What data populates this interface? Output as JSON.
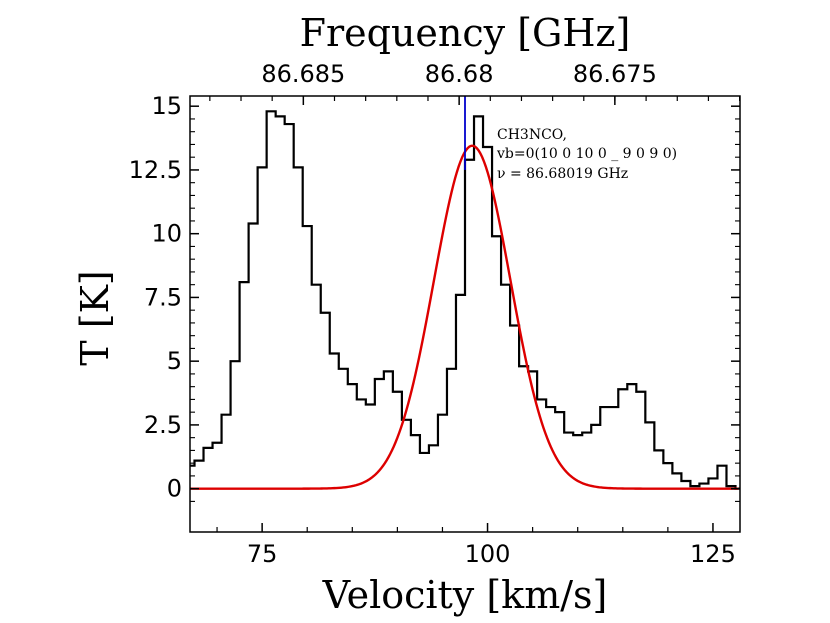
{
  "chart_data": {
    "type": "line",
    "title": "",
    "xlabel": "Velocity [km/s]",
    "ylabel": "T [K]",
    "top_xlabel": "Frequency [GHz]",
    "xlim": [
      67,
      128
    ],
    "ylim": [
      -1.7,
      15.4
    ],
    "x_ticks": [
      75,
      100,
      125
    ],
    "x_tick_labels": [
      "75",
      "100",
      "125"
    ],
    "y_ticks": [
      0,
      2.5,
      5,
      7.5,
      10,
      12.5,
      15
    ],
    "y_tick_labels": [
      "0",
      "2.5",
      "5",
      "7.5",
      "10",
      "12.5",
      "15"
    ],
    "top_ticks": [
      {
        "velocity": 79.57,
        "label": "86.685"
      },
      {
        "velocity": 96.85,
        "label": "86.68"
      },
      {
        "velocity": 114.12,
        "label": "86.675"
      }
    ],
    "grid": false,
    "legend": "none",
    "annotation": [
      "CH3NCO,",
      "vb=0(10 0 10 0 _ 9 0 9 0)",
      "ν = 86.68019 GHz"
    ],
    "line_marker": {
      "velocity": 97.5,
      "color": "#0000cc"
    },
    "series": [
      {
        "style": "steps",
        "color": "#000000",
        "x": [
          67.0,
          68.0,
          69.0,
          70.0,
          71.0,
          72.0,
          73.0,
          74.0,
          75.0,
          76.0,
          77.0,
          78.0,
          79.0,
          80.0,
          81.0,
          82.0,
          83.0,
          84.0,
          85.0,
          86.0,
          87.0,
          88.0,
          89.0,
          90.0,
          91.0,
          92.0,
          93.0,
          94.0,
          95.0,
          96.0,
          97.0,
          98.0,
          99.0,
          100.0,
          101.0,
          102.0,
          103.0,
          104.0,
          105.0,
          106.0,
          107.0,
          108.0,
          109.0,
          110.0,
          111.0,
          112.0,
          113.0,
          114.0,
          115.0,
          116.0,
          117.0,
          118.0,
          119.0,
          120.0,
          121.0,
          122.0,
          123.0,
          124.0,
          125.0,
          126.0,
          127.0,
          128.0
        ],
        "y": [
          0.9,
          1.1,
          1.6,
          1.8,
          2.9,
          5.0,
          8.1,
          10.4,
          12.6,
          14.8,
          14.6,
          14.3,
          12.6,
          10.3,
          8.0,
          6.9,
          5.3,
          4.7,
          4.1,
          3.5,
          3.3,
          4.3,
          4.6,
          3.8,
          2.7,
          2.1,
          1.4,
          1.7,
          2.9,
          4.7,
          7.6,
          12.9,
          14.6,
          13.4,
          9.9,
          8.0,
          6.4,
          4.8,
          4.6,
          3.5,
          3.2,
          3.0,
          2.2,
          2.1,
          2.2,
          2.5,
          3.2,
          3.2,
          3.9,
          4.1,
          3.8,
          2.6,
          1.5,
          1.0,
          0.6,
          0.3,
          0.1,
          0.2,
          0.4,
          0.9,
          0.1,
          0.0
        ]
      },
      {
        "style": "gaussian",
        "color": "#dd0000",
        "amplitude": 13.45,
        "center": 98.3,
        "sigma": 4.25
      }
    ]
  }
}
